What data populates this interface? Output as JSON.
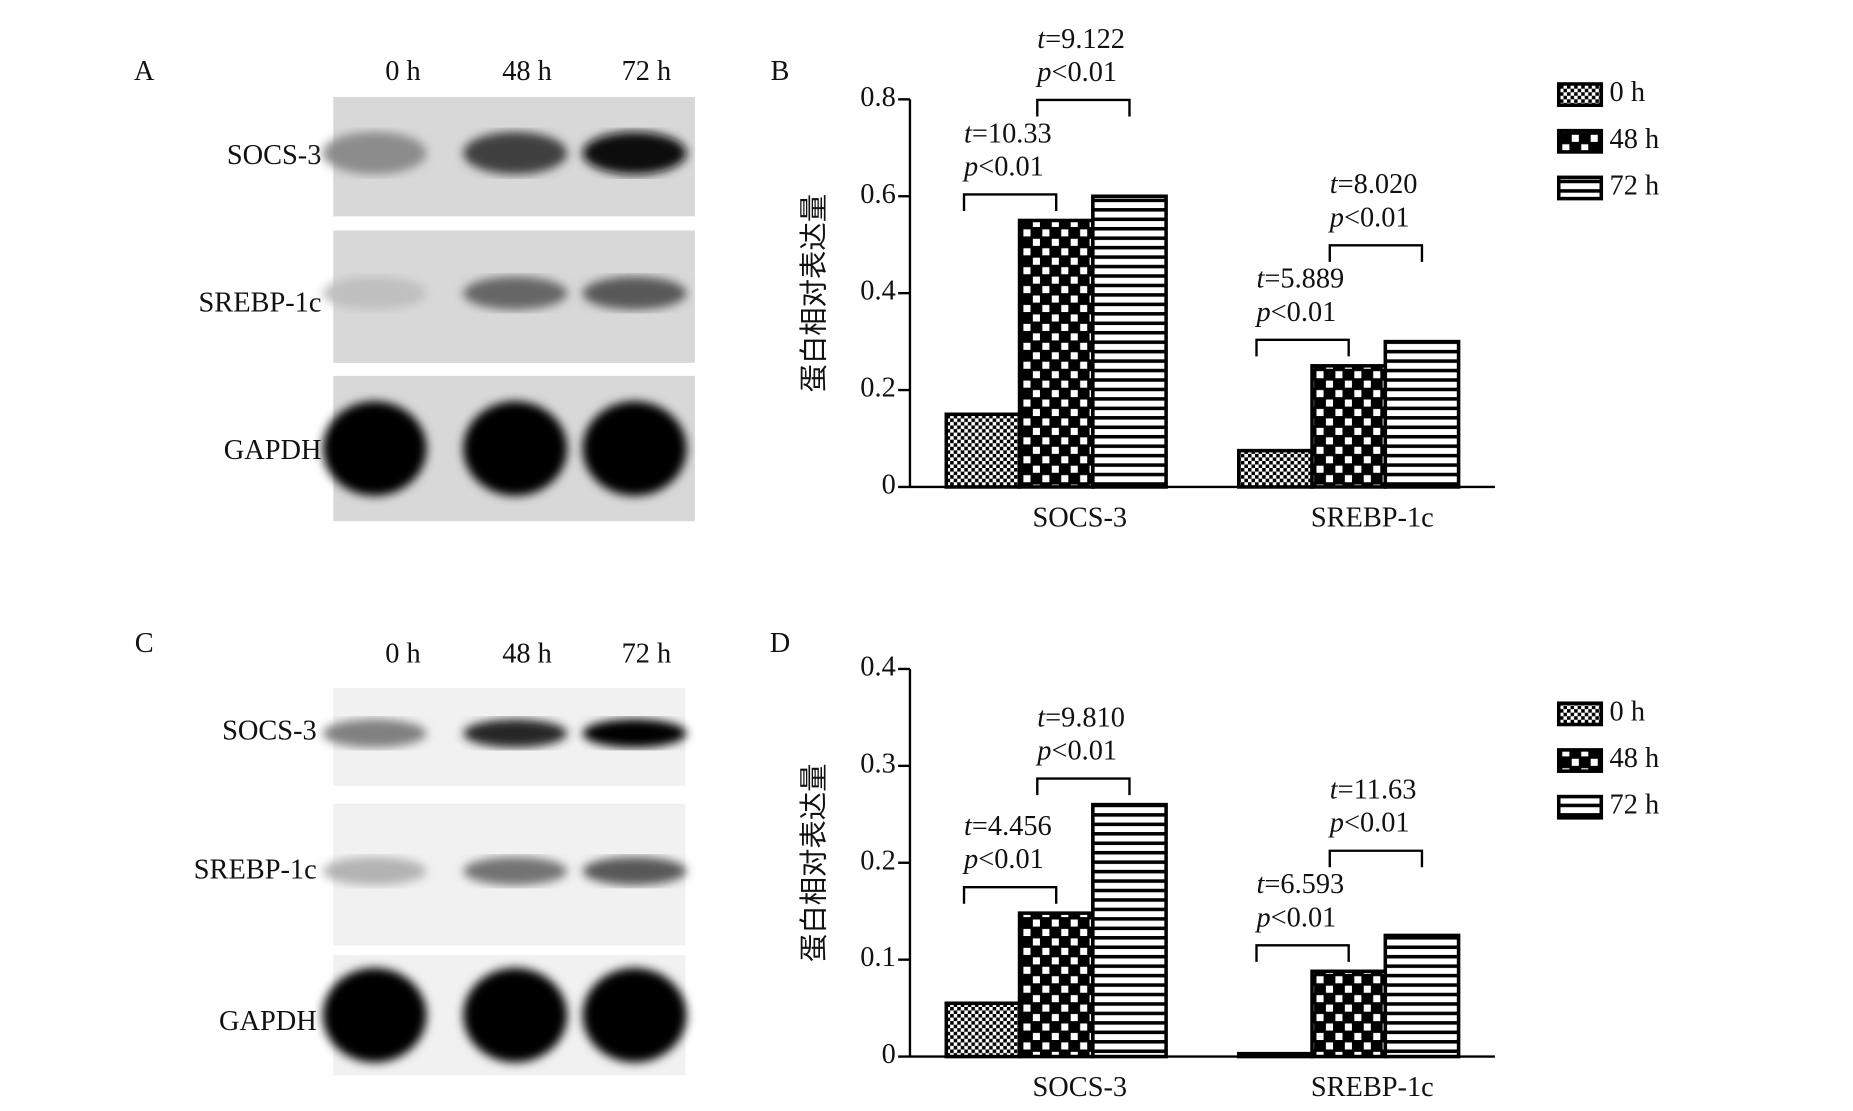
{
  "blots": [
    {
      "label": "A",
      "lanes": [
        "0 h",
        "48 h",
        "72 h"
      ],
      "rows": [
        "SOCS-3",
        "SREBP-1c",
        "GAPDH"
      ]
    },
    {
      "label": "C",
      "lanes": [
        "0 h",
        "48 h",
        "72 h"
      ],
      "rows": [
        "SOCS-3",
        "SREBP-1c",
        "GAPDH"
      ]
    }
  ],
  "chart_data": [
    {
      "type": "bar",
      "label": "B",
      "ylabel": "蛋白相对表达量",
      "categories": [
        "SOCS-3",
        "SREBP-1c"
      ],
      "series": [
        {
          "name": "0 h",
          "values": [
            0.15,
            0.075
          ]
        },
        {
          "name": "48 h",
          "values": [
            0.55,
            0.25
          ]
        },
        {
          "name": "72 h",
          "values": [
            0.6,
            0.3
          ]
        }
      ],
      "ylim": [
        0,
        0.8
      ],
      "yticks": [
        0,
        0.2,
        0.4,
        0.6,
        0.8
      ],
      "annotations": [
        [
          {
            "t": "t=10.33",
            "p": "p<0.01"
          },
          {
            "t": "t=9.122",
            "p": "p<0.01"
          }
        ],
        [
          {
            "t": "t=5.889",
            "p": "p<0.01"
          },
          {
            "t": "t=8.020",
            "p": "p<0.01"
          }
        ]
      ]
    },
    {
      "type": "bar",
      "label": "D",
      "ylabel": "蛋白相对表达量",
      "categories": [
        "SOCS-3",
        "SREBP-1c"
      ],
      "series": [
        {
          "name": "0 h",
          "values": [
            0.055,
            0.003
          ]
        },
        {
          "name": "48 h",
          "values": [
            0.148,
            0.088
          ]
        },
        {
          "name": "72 h",
          "values": [
            0.26,
            0.125
          ]
        }
      ],
      "ylim": [
        0,
        0.4
      ],
      "yticks": [
        0,
        0.1,
        0.2,
        0.3,
        0.4
      ],
      "annotations": [
        [
          {
            "t": "t=4.456",
            "p": "p<0.01"
          },
          {
            "t": "t=9.810",
            "p": "p<0.01"
          }
        ],
        [
          {
            "t": "t=6.593",
            "p": "p<0.01"
          },
          {
            "t": "t=11.63",
            "p": "p<0.01"
          }
        ]
      ]
    }
  ]
}
